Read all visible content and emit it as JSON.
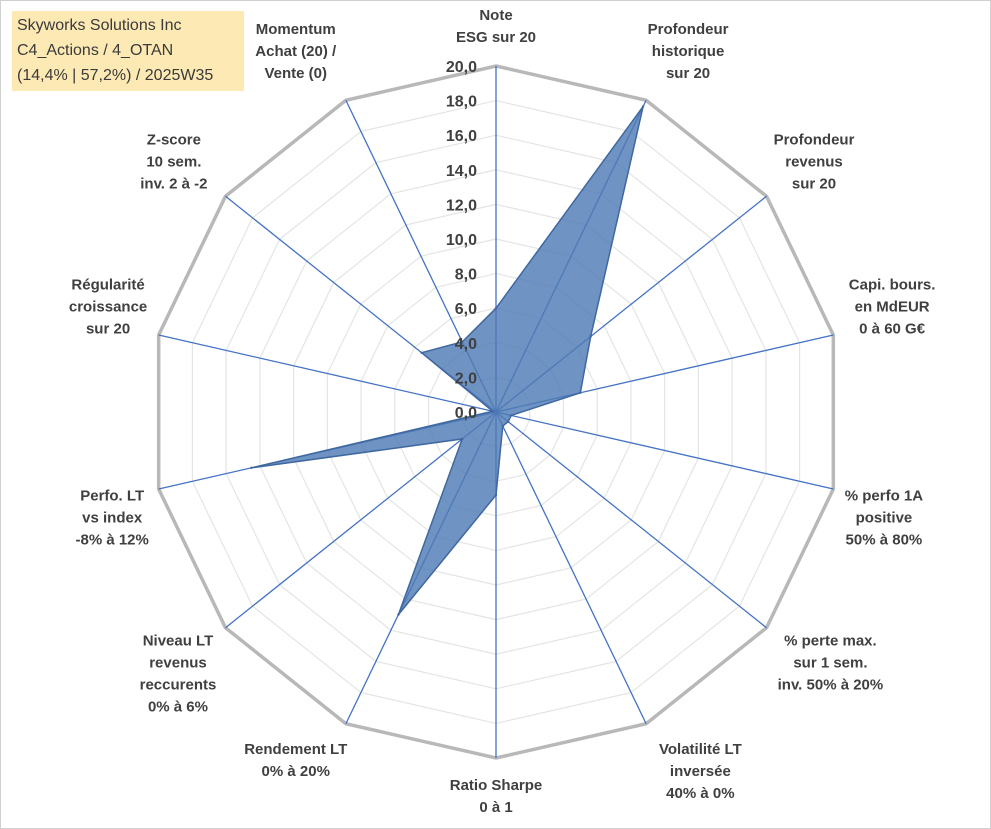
{
  "info_box": {
    "line1": "Skyworks Solutions Inc",
    "line2": "C4_Actions / 4_OTAN",
    "line3": "(14,4% | 57,2%) / 2025W35"
  },
  "colors": {
    "grid": "#bfbfbf",
    "spokes": "#4472c4",
    "fill": "#4f7bb5",
    "stroke": "#3f68a0",
    "background": "#ffffff",
    "info_bg": "#fde9b4"
  },
  "chart_data": {
    "type": "radar",
    "title": "",
    "rlim": [
      0,
      20
    ],
    "r_step": 2,
    "r_ticks": [
      "0,0",
      "2,0",
      "4,0",
      "6,0",
      "8,0",
      "10,0",
      "12,0",
      "14,0",
      "16,0",
      "18,0",
      "20,0"
    ],
    "grid": true,
    "categories": [
      [
        "Note",
        "ESG sur 20"
      ],
      [
        "Profondeur",
        "historique",
        "sur 20"
      ],
      [
        "Profondeur",
        "revenus",
        "sur 20"
      ],
      [
        "Capi. bours.",
        "en MdEUR",
        "0 à 60 G€"
      ],
      [
        "% perfo 1A",
        "positive",
        "50% à 80%"
      ],
      [
        "% perte max.",
        "sur 1 sem.",
        "inv. 50% à 20%"
      ],
      [
        "Volatilité LT",
        "inversée",
        "40% à 0%"
      ],
      [
        "Ratio Sharpe",
        "0 à 1"
      ],
      [
        "Rendement LT",
        "0% à 20%"
      ],
      [
        "Niveau LT",
        "revenus",
        "reccurents",
        "0% à 6%"
      ],
      [
        "Perfo. LT",
        "vs index",
        "-8% à 12%"
      ],
      [
        "Régularité",
        "croissance",
        "sur 20"
      ],
      [
        "Z-score",
        "10 sem.",
        "inv. 2 à -2"
      ],
      [
        "Momentum",
        "Achat (20) /",
        "Vente (0)"
      ]
    ],
    "series": [
      {
        "values": [
          6.0,
          19.6,
          7.0,
          5.0,
          0.9,
          0.9,
          0.9,
          4.8,
          13.0,
          2.5,
          14.5,
          0.2,
          5.5,
          4.5
        ]
      }
    ]
  }
}
